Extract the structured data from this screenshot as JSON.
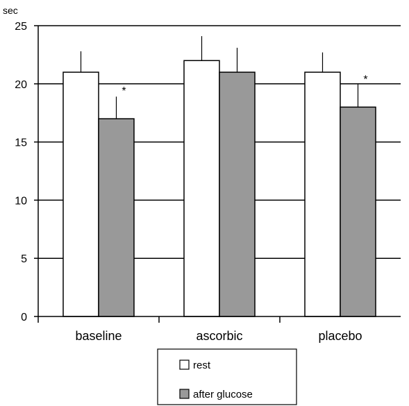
{
  "chart_data": {
    "type": "bar",
    "title": "",
    "xlabel": "",
    "ylabel": "sec",
    "ylim": [
      0,
      25
    ],
    "yticks": [
      0,
      5,
      10,
      15,
      20,
      25
    ],
    "grid": true,
    "legend_placement": "bottom-center",
    "categories": [
      "baseline",
      "ascorbic",
      "placebo"
    ],
    "series": [
      {
        "name": "rest",
        "color": "#ffffff",
        "values": [
          21,
          22,
          21
        ],
        "errors": [
          1.8,
          2.1,
          1.7
        ]
      },
      {
        "name": "after glucose",
        "color": "#999999",
        "values": [
          17,
          21,
          18
        ],
        "errors": [
          1.9,
          2.1,
          2.0
        ]
      }
    ],
    "annotations": [
      {
        "text": "*",
        "category": "baseline",
        "series": "after glucose"
      },
      {
        "text": "*",
        "category": "placebo",
        "series": "after glucose"
      }
    ]
  }
}
